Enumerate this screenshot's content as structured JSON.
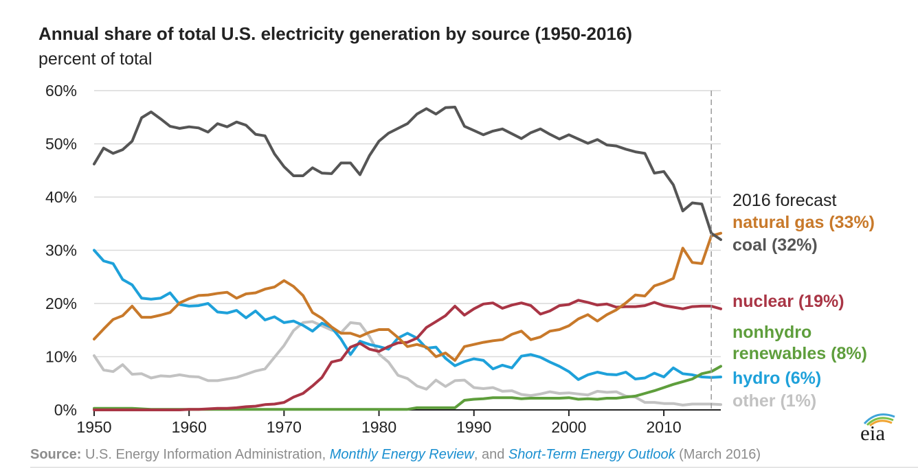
{
  "title": "Annual share of total U.S. electricity generation by source (1950-2016)",
  "subtitle": "percent of total",
  "forecast_label": "2016 forecast",
  "source": {
    "lead": "Source:",
    "text1": " U.S. Energy Information Administration, ",
    "link1": "Monthly Energy Review",
    "text2": ", and ",
    "link2": "Short-Term Energy Outlook",
    "text3": " (March 2016)"
  },
  "logo_text": "eia",
  "chart_data": {
    "type": "line",
    "xlim": [
      1950,
      2016
    ],
    "ylim": [
      0,
      60
    ],
    "x_ticks": [
      1950,
      1960,
      1970,
      1980,
      1990,
      2000,
      2010
    ],
    "x_tick_labels": [
      "1950",
      "1960",
      "1970",
      "1980",
      "1990",
      "2000",
      "2010"
    ],
    "y_ticks": [
      0,
      10,
      20,
      30,
      40,
      50,
      60
    ],
    "y_tick_labels": [
      "0%",
      "10%",
      "20%",
      "30%",
      "40%",
      "50%",
      "60%"
    ],
    "grid": "horizontal",
    "forecast_year": 2015,
    "x_start": 1950,
    "series": [
      {
        "name": "coal (32%)",
        "color": "#555555",
        "values": [
          46.2,
          49.2,
          48.2,
          48.9,
          50.5,
          54.9,
          56.0,
          54.7,
          53.3,
          52.9,
          53.2,
          53.0,
          52.2,
          53.8,
          53.2,
          54.1,
          53.5,
          51.8,
          51.5,
          48.1,
          45.7,
          44.0,
          44.0,
          45.5,
          44.5,
          44.4,
          46.4,
          46.4,
          44.2,
          47.8,
          50.5,
          52.0,
          52.9,
          53.8,
          55.6,
          56.6,
          55.6,
          56.8,
          56.9,
          53.3,
          52.5,
          51.7,
          52.4,
          52.8,
          51.9,
          51.0,
          52.1,
          52.8,
          51.8,
          50.9,
          51.7,
          50.9,
          50.1,
          50.8,
          49.8,
          49.6,
          49.0,
          48.5,
          48.2,
          44.5,
          44.8,
          42.3,
          37.4,
          38.9,
          38.7,
          33.2,
          32.0
        ]
      },
      {
        "name": "natural gas (33%)",
        "color": "#c8792a",
        "values": [
          13.3,
          15.2,
          17.0,
          17.7,
          19.5,
          17.4,
          17.4,
          17.8,
          18.3,
          20.1,
          20.9,
          21.5,
          21.6,
          21.9,
          22.1,
          21.0,
          21.8,
          22.0,
          22.7,
          23.1,
          24.3,
          23.2,
          21.5,
          18.3,
          17.2,
          15.6,
          14.4,
          14.4,
          13.8,
          14.6,
          15.1,
          15.1,
          13.6,
          11.9,
          12.3,
          11.8,
          10.0,
          10.7,
          9.3,
          11.9,
          12.3,
          12.7,
          13.0,
          13.2,
          14.2,
          14.8,
          13.2,
          13.7,
          14.8,
          15.1,
          15.8,
          17.1,
          17.9,
          16.7,
          17.9,
          18.8,
          20.1,
          21.6,
          21.4,
          23.3,
          23.9,
          24.7,
          30.4,
          27.7,
          27.5,
          32.7,
          33.2
        ]
      },
      {
        "name": "nuclear (19%)",
        "color": "#a93545",
        "values": [
          0,
          0,
          0,
          0,
          0,
          0,
          0,
          0,
          0,
          0,
          0.1,
          0.1,
          0.2,
          0.3,
          0.3,
          0.4,
          0.6,
          0.7,
          1.0,
          1.1,
          1.4,
          2.4,
          3.1,
          4.5,
          6.1,
          9.0,
          9.4,
          11.8,
          12.5,
          11.4,
          11.0,
          11.9,
          12.6,
          12.7,
          13.5,
          15.5,
          16.6,
          17.7,
          19.5,
          17.8,
          19.0,
          19.9,
          20.1,
          19.1,
          19.7,
          20.1,
          19.6,
          18.0,
          18.6,
          19.6,
          19.8,
          20.6,
          20.2,
          19.7,
          19.9,
          19.3,
          19.4,
          19.4,
          19.6,
          20.2,
          19.6,
          19.3,
          19.0,
          19.4,
          19.5,
          19.5,
          19.0
        ]
      },
      {
        "name": "nonhydro renewables (8%)",
        "color": "#5e9e3c",
        "values": [
          0.3,
          0.3,
          0.3,
          0.3,
          0.3,
          0.2,
          0.1,
          0.1,
          0.1,
          0.1,
          0.1,
          0.1,
          0.1,
          0.1,
          0.1,
          0.1,
          0.1,
          0.1,
          0.1,
          0.1,
          0.1,
          0.1,
          0.1,
          0.1,
          0.1,
          0.1,
          0.1,
          0.1,
          0.1,
          0.1,
          0.1,
          0.1,
          0.1,
          0.1,
          0.4,
          0.4,
          0.4,
          0.4,
          0.4,
          1.8,
          2.0,
          2.1,
          2.3,
          2.3,
          2.3,
          2.1,
          2.2,
          2.2,
          2.2,
          2.2,
          2.3,
          2.0,
          2.1,
          2.0,
          2.2,
          2.2,
          2.4,
          2.6,
          3.1,
          3.6,
          4.2,
          4.8,
          5.3,
          5.8,
          6.8,
          7.2,
          8.2
        ]
      },
      {
        "name": "hydro (6%)",
        "color": "#1ea1da",
        "values": [
          30.0,
          28.0,
          27.5,
          24.5,
          23.5,
          21.0,
          20.8,
          21.0,
          22.0,
          19.8,
          19.5,
          19.6,
          20.0,
          18.4,
          18.2,
          18.7,
          17.3,
          18.6,
          16.9,
          17.5,
          16.4,
          16.7,
          15.9,
          14.8,
          16.3,
          15.5,
          13.3,
          10.4,
          12.9,
          12.3,
          11.9,
          11.4,
          13.5,
          14.4,
          13.5,
          11.6,
          11.8,
          9.7,
          8.3,
          9.1,
          9.6,
          9.3,
          7.7,
          8.4,
          7.9,
          10.1,
          10.4,
          9.9,
          9.0,
          8.2,
          7.2,
          5.7,
          6.6,
          7.1,
          6.7,
          6.6,
          7.1,
          5.8,
          6.0,
          6.9,
          6.2,
          7.9,
          6.8,
          6.6,
          6.2,
          6.1,
          6.2
        ]
      },
      {
        "name": "other (1%)",
        "color": "#c2c2c2",
        "values": [
          10.2,
          7.5,
          7.2,
          8.5,
          6.7,
          6.8,
          6.0,
          6.4,
          6.3,
          6.6,
          6.3,
          6.2,
          5.5,
          5.5,
          5.8,
          6.1,
          6.7,
          7.3,
          7.7,
          9.9,
          12.1,
          14.9,
          16.4,
          16.6,
          15.8,
          15.0,
          14.5,
          16.4,
          16.2,
          13.8,
          10.5,
          9.0,
          6.5,
          5.9,
          4.5,
          3.9,
          5.6,
          4.4,
          5.5,
          5.6,
          4.2,
          4.0,
          4.2,
          3.5,
          3.6,
          2.9,
          2.7,
          3.0,
          3.4,
          3.1,
          3.2,
          3.0,
          2.8,
          3.5,
          3.3,
          3.4,
          2.6,
          2.4,
          1.4,
          1.4,
          1.2,
          1.2,
          0.9,
          1.1,
          1.1,
          1.1,
          1.0
        ]
      }
    ]
  }
}
